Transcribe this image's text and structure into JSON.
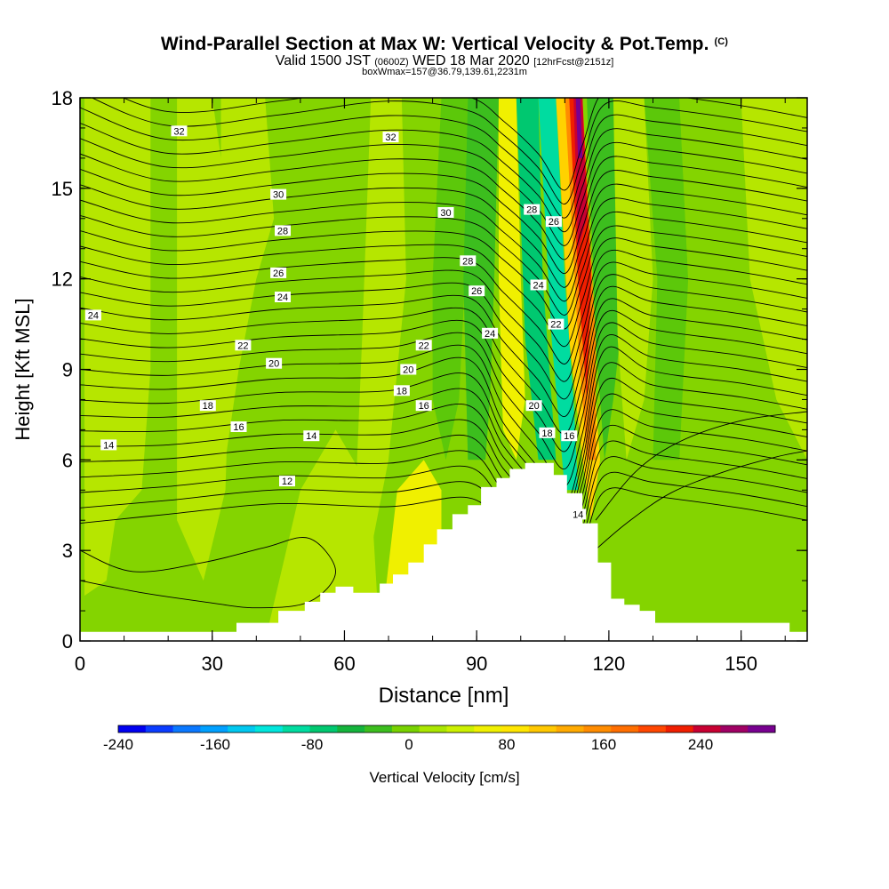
{
  "title": {
    "main": "Wind-Parallel Section at Max W: Vertical Velocity & Pot.Temp.",
    "copyright": "(C)",
    "valid_prefix": "Valid 1500 JST",
    "valid_utc": "(0600Z)",
    "valid_suffix": "WED 18 Mar 2020",
    "forecast": "[12hrFcst@2151z]",
    "box": "boxWmax=157@36.79,139.61,2231m"
  },
  "colorbar": {
    "label": "Vertical Velocity [cm/s]",
    "ticks": [
      "-240",
      "-160",
      "-80",
      "0",
      "80",
      "160",
      "240"
    ],
    "colors": [
      "#0000f0",
      "#0a3cff",
      "#0a78ff",
      "#00a0ff",
      "#00c8f0",
      "#00e6dc",
      "#00dca0",
      "#00c870",
      "#14b43c",
      "#3cbe1e",
      "#78d200",
      "#aae600",
      "#ccf000",
      "#f0f000",
      "#ffe600",
      "#ffc800",
      "#ffaa00",
      "#ff8c00",
      "#ff6e00",
      "#ff4600",
      "#f01e00",
      "#c80032",
      "#a00064",
      "#780090"
    ]
  },
  "chart_data": {
    "type": "heatmap",
    "xlabel": "Distance [nm]",
    "ylabel": "Height [Kft MSL]",
    "xlim": [
      0,
      165
    ],
    "ylim": [
      0,
      18
    ],
    "xticks": [
      "0",
      "30",
      "60",
      "90",
      "120",
      "150"
    ],
    "yticks": [
      "0",
      "3",
      "6",
      "9",
      "12",
      "15",
      "18"
    ],
    "field": "Vertical Velocity [cm/s]",
    "contour_field": "Pot.Temp.",
    "max_w": 157,
    "terrain": [
      [
        0,
        0.3
      ],
      [
        30,
        0.3
      ],
      [
        35.5,
        0.3
      ],
      [
        35.5,
        0.6
      ],
      [
        45,
        0.6
      ],
      [
        45,
        1.0
      ],
      [
        51,
        1.0
      ],
      [
        51,
        1.3
      ],
      [
        54.5,
        1.3
      ],
      [
        54.5,
        1.6
      ],
      [
        58,
        1.6
      ],
      [
        58,
        1.8
      ],
      [
        62,
        1.8
      ],
      [
        62,
        1.6
      ],
      [
        68,
        1.6
      ],
      [
        68,
        1.9
      ],
      [
        71,
        1.9
      ],
      [
        71,
        2.2
      ],
      [
        74.5,
        2.2
      ],
      [
        74.5,
        2.6
      ],
      [
        78,
        2.6
      ],
      [
        78,
        3.2
      ],
      [
        81,
        3.2
      ],
      [
        81,
        3.7
      ],
      [
        84.5,
        3.7
      ],
      [
        84.5,
        4.2
      ],
      [
        88,
        4.2
      ],
      [
        88,
        4.5
      ],
      [
        91,
        4.5
      ],
      [
        91,
        5.1
      ],
      [
        94.5,
        5.1
      ],
      [
        94.5,
        5.4
      ],
      [
        97.5,
        5.4
      ],
      [
        97.5,
        5.7
      ],
      [
        101,
        5.7
      ],
      [
        101,
        5.9
      ],
      [
        107.5,
        5.9
      ],
      [
        107.5,
        5.5
      ],
      [
        110.5,
        5.5
      ],
      [
        110.5,
        4.9
      ],
      [
        114,
        4.9
      ],
      [
        114,
        3.9
      ],
      [
        117.5,
        3.9
      ],
      [
        117.5,
        2.6
      ],
      [
        120.5,
        2.6
      ],
      [
        120.5,
        1.4
      ],
      [
        123.5,
        1.4
      ],
      [
        123.5,
        1.2
      ],
      [
        127,
        1.2
      ],
      [
        127,
        1.0
      ],
      [
        130.5,
        1.0
      ],
      [
        130.5,
        0.6
      ],
      [
        161,
        0.6
      ],
      [
        161,
        0.3
      ],
      [
        165,
        0.3
      ]
    ],
    "contour_labels": [
      {
        "text": "32",
        "x": 22.5,
        "y": 16.9
      },
      {
        "text": "32",
        "x": 70.5,
        "y": 16.7
      },
      {
        "text": "30",
        "x": 45,
        "y": 14.8
      },
      {
        "text": "30",
        "x": 83,
        "y": 14.2
      },
      {
        "text": "28",
        "x": 46,
        "y": 13.6
      },
      {
        "text": "28",
        "x": 88,
        "y": 12.6
      },
      {
        "text": "28",
        "x": 102.5,
        "y": 14.3
      },
      {
        "text": "26",
        "x": 45,
        "y": 12.2
      },
      {
        "text": "26",
        "x": 90,
        "y": 11.6
      },
      {
        "text": "26",
        "x": 107.5,
        "y": 13.9
      },
      {
        "text": "24",
        "x": 3,
        "y": 10.8
      },
      {
        "text": "24",
        "x": 46,
        "y": 11.4
      },
      {
        "text": "24",
        "x": 93,
        "y": 10.2
      },
      {
        "text": "24",
        "x": 104,
        "y": 11.8
      },
      {
        "text": "22",
        "x": 37,
        "y": 9.8
      },
      {
        "text": "22",
        "x": 78,
        "y": 9.8
      },
      {
        "text": "22",
        "x": 108,
        "y": 10.5
      },
      {
        "text": "20",
        "x": 44,
        "y": 9.2
      },
      {
        "text": "20",
        "x": 74.5,
        "y": 9.0
      },
      {
        "text": "20",
        "x": 103,
        "y": 7.8
      },
      {
        "text": "18",
        "x": 29,
        "y": 7.8
      },
      {
        "text": "18",
        "x": 73,
        "y": 8.3
      },
      {
        "text": "18",
        "x": 106,
        "y": 6.9
      },
      {
        "text": "16",
        "x": 36,
        "y": 7.1
      },
      {
        "text": "16",
        "x": 78,
        "y": 7.8
      },
      {
        "text": "16",
        "x": 111,
        "y": 6.8
      },
      {
        "text": "14",
        "x": 6.5,
        "y": 6.5
      },
      {
        "text": "14",
        "x": 52.5,
        "y": 6.8
      },
      {
        "text": "14",
        "x": 113,
        "y": 4.2
      },
      {
        "text": "12",
        "x": 47,
        "y": 5.3
      }
    ]
  }
}
